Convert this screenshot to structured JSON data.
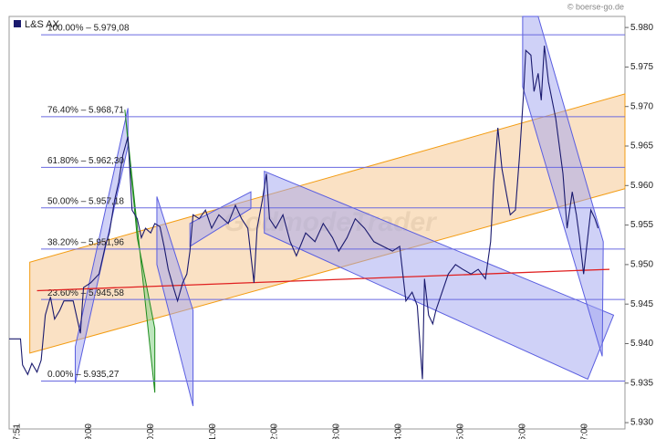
{
  "chart_data": {
    "type": "line",
    "copyright": "© boerse-go.de",
    "watermark": "GodmodeTrader",
    "xlim": [
      463,
      1059
    ],
    "ylim": [
      5.9292,
      5.9814
    ],
    "xticks": [
      {
        "value": 471,
        "label": "07:51"
      },
      {
        "value": 540,
        "label": "09:00"
      },
      {
        "value": 600,
        "label": "10:00"
      },
      {
        "value": 660,
        "label": "11:00"
      },
      {
        "value": 720,
        "label": "12:00"
      },
      {
        "value": 780,
        "label": "13:00"
      },
      {
        "value": 840,
        "label": "14:00"
      },
      {
        "value": 900,
        "label": "15:00"
      },
      {
        "value": 960,
        "label": "16:00"
      },
      {
        "value": 1020,
        "label": "17:00"
      }
    ],
    "yticks": [
      {
        "value": 5.93,
        "label": "5.930"
      },
      {
        "value": 5.935,
        "label": "5.935"
      },
      {
        "value": 5.94,
        "label": "5.940"
      },
      {
        "value": 5.945,
        "label": "5.945"
      },
      {
        "value": 5.95,
        "label": "5.950"
      },
      {
        "value": 5.955,
        "label": "5.955"
      },
      {
        "value": 5.96,
        "label": "5.960"
      },
      {
        "value": 5.965,
        "label": "5.965"
      },
      {
        "value": 5.97,
        "label": "5.970"
      },
      {
        "value": 5.975,
        "label": "5.975"
      },
      {
        "value": 5.98,
        "label": "5.980"
      }
    ],
    "series": [
      {
        "name": "L&S AX",
        "color": "#1a1a6e",
        "x": [
          463,
          474,
          476,
          481,
          485,
          490,
          494,
          498,
          503,
          507,
          512,
          516,
          525,
          532,
          535,
          542,
          550,
          556,
          560,
          565,
          569,
          573,
          578,
          582,
          587,
          591,
          595,
          600,
          604,
          609,
          613,
          617,
          622,
          626,
          631,
          635,
          638,
          641,
          647,
          653,
          659,
          666,
          675,
          682,
          688,
          694,
          700,
          703,
          708,
          712,
          715,
          721,
          728,
          735,
          741,
          750,
          759,
          767,
          776,
          782,
          790,
          798,
          807,
          816,
          825,
          834,
          841,
          847,
          853,
          858,
          863,
          865,
          869,
          873,
          876,
          882,
          888,
          895,
          902,
          910,
          917,
          924,
          929,
          932,
          936,
          940,
          944,
          948,
          953,
          957,
          961,
          963,
          968,
          971,
          975,
          978,
          981,
          985,
          992,
          999,
          1003,
          1008,
          1012,
          1015,
          1019,
          1022,
          1026,
          1030,
          1033
        ],
        "values": [
          5.9406,
          5.9406,
          5.9373,
          5.9361,
          5.9375,
          5.9364,
          5.9379,
          5.9436,
          5.9459,
          5.9431,
          5.9442,
          5.9454,
          5.9454,
          5.9413,
          5.9471,
          5.9477,
          5.9488,
          5.9523,
          5.954,
          5.9581,
          5.9604,
          5.9638,
          5.9662,
          5.9569,
          5.9558,
          5.9534,
          5.9546,
          5.954,
          5.9552,
          5.9548,
          5.9523,
          5.9494,
          5.9471,
          5.9454,
          5.9477,
          5.9488,
          5.9517,
          5.9563,
          5.9558,
          5.9569,
          5.9546,
          5.9563,
          5.9552,
          5.9575,
          5.9558,
          5.9546,
          5.9477,
          5.9546,
          5.9581,
          5.9615,
          5.9558,
          5.9546,
          5.9563,
          5.9529,
          5.9511,
          5.954,
          5.9529,
          5.9552,
          5.9534,
          5.9517,
          5.9534,
          5.9558,
          5.9546,
          5.9529,
          5.9523,
          5.9517,
          5.9523,
          5.9454,
          5.9465,
          5.9448,
          5.9355,
          5.9482,
          5.9436,
          5.9425,
          5.9442,
          5.9465,
          5.9488,
          5.95,
          5.9494,
          5.9488,
          5.9494,
          5.9482,
          5.9529,
          5.9604,
          5.9673,
          5.9621,
          5.9592,
          5.9563,
          5.9569,
          5.9638,
          5.9719,
          5.9771,
          5.9765,
          5.9719,
          5.9742,
          5.9708,
          5.9777,
          5.9731,
          5.9685,
          5.9615,
          5.9546,
          5.9592,
          5.9563,
          5.9534,
          5.9488,
          5.9523,
          5.9569,
          5.9558,
          5.9546
        ]
      }
    ],
    "fib_levels": [
      {
        "label": "100.00% – 5.979,08",
        "value": 5.97908
      },
      {
        "label": "76.40% – 5.968,71",
        "value": 5.96871
      },
      {
        "label": "61.80% – 5.962,30",
        "value": 5.9623
      },
      {
        "label": "50.00% – 5.957,18",
        "value": 5.95718
      },
      {
        "label": "38.20% – 5.951,96",
        "value": 5.95196
      },
      {
        "label": "23.60% – 5.945,58",
        "value": 5.94558
      },
      {
        "label": "0.00% – 5.935,27",
        "value": 5.93527
      }
    ],
    "channels": [
      {
        "fill": "#f5c48a",
        "stroke": "#f39c12",
        "points": [
          [
            483,
            5.9388
          ],
          [
            1059,
            5.9596
          ],
          [
            1059,
            5.9716
          ],
          [
            483,
            5.9503
          ]
        ]
      },
      {
        "fill": "#9fa3f0",
        "stroke": "#5a5ee0",
        "points": [
          [
            527,
            5.9396
          ],
          [
            527,
            5.935
          ],
          [
            578,
            5.965
          ],
          [
            578,
            5.9698
          ]
        ]
      },
      {
        "fill": "#7ccd7c",
        "stroke": "#1e8c1e",
        "points": [
          [
            575,
            5.9696
          ],
          [
            604,
            5.9338
          ],
          [
            604,
            5.9419
          ],
          [
            587,
            5.9534
          ]
        ]
      },
      {
        "fill": "#9fa3f0",
        "stroke": "#5a5ee0",
        "points": [
          [
            606,
            5.9586
          ],
          [
            641,
            5.9442
          ],
          [
            641,
            5.9321
          ],
          [
            606,
            5.95
          ]
        ]
      },
      {
        "fill": "#9fa3f0",
        "stroke": "#5a5ee0",
        "points": [
          [
            638,
            5.9552
          ],
          [
            697,
            5.9592
          ],
          [
            697,
            5.9571
          ],
          [
            638,
            5.9523
          ]
        ]
      },
      {
        "fill": "#9fa3f0",
        "stroke": "#5a5ee0",
        "points": [
          [
            710,
            5.9618
          ],
          [
            1048,
            5.9436
          ],
          [
            1023,
            5.9355
          ],
          [
            710,
            5.954
          ]
        ]
      },
      {
        "fill": "#9fa3f0",
        "stroke": "#5a5ee0",
        "points": [
          [
            960,
            5.9814
          ],
          [
            975,
            5.9814
          ],
          [
            1038,
            5.9529
          ],
          [
            1037,
            5.9384
          ],
          [
            960,
            5.9725
          ]
        ]
      }
    ],
    "trendline": {
      "color": "#e02020",
      "points": [
        [
          490,
          5.9467
        ],
        [
          1044,
          5.9494
        ]
      ]
    },
    "fib_color": "#6a6ae0"
  }
}
